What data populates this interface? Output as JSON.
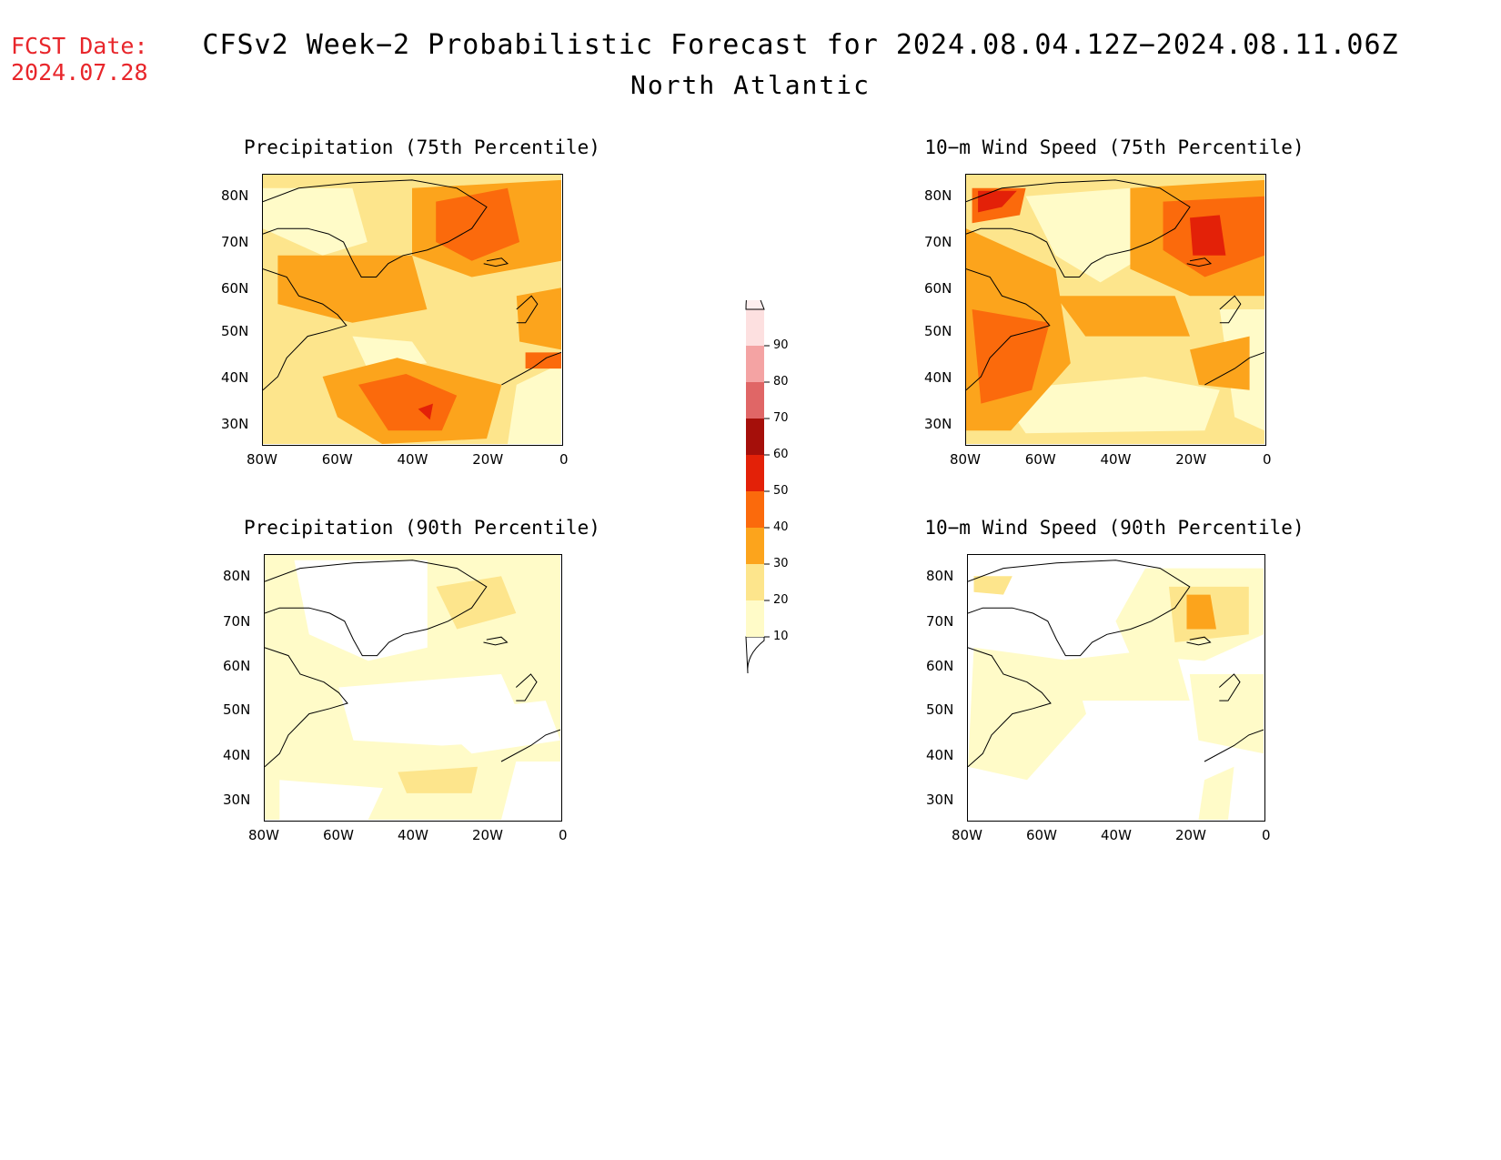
{
  "header": {
    "fcst_label": "FCST Date:",
    "fcst_date": "2024.07.28",
    "title": "CFSv2 Week−2 Probabilistic Forecast for 2024.08.04.12Z−2024.08.11.06Z",
    "region": "North Atlantic"
  },
  "panels": [
    {
      "title": "Precipitation (75th Percentile)"
    },
    {
      "title": "10−m Wind Speed (75th Percentile)"
    },
    {
      "title": "Precipitation (90th Percentile)"
    },
    {
      "title": "10−m Wind Speed (90th Percentile)"
    }
  ],
  "axes": {
    "lat_labels": [
      "80N",
      "70N",
      "60N",
      "50N",
      "40N",
      "30N"
    ],
    "lon_labels": [
      "80W",
      "60W",
      "40W",
      "20W",
      "0"
    ]
  },
  "colorbar": {
    "levels": [
      "10",
      "20",
      "30",
      "40",
      "50",
      "60",
      "70",
      "80",
      "90"
    ],
    "colors": [
      "#fffbc8",
      "#fde58c",
      "#fca41c",
      "#fb6a0c",
      "#e32108",
      "#a50f0a",
      "#e06666",
      "#f4a3a3",
      "#fde0e0"
    ]
  }
}
